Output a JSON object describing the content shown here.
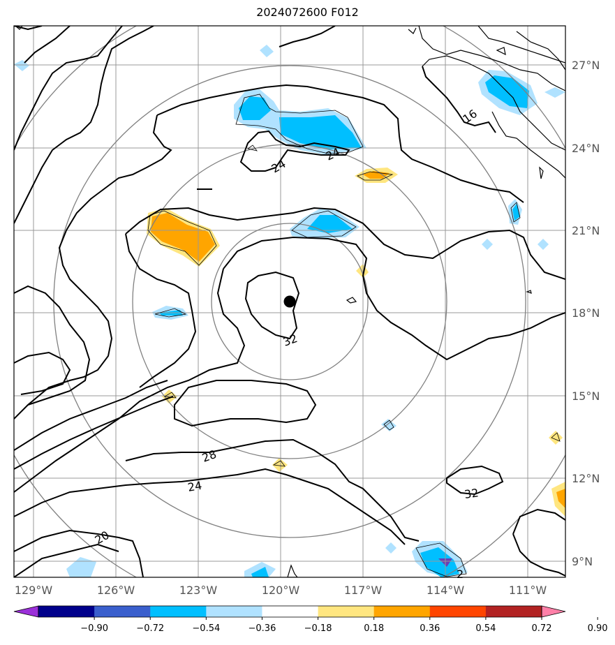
{
  "title": "2024072600 F012",
  "lon_labels": [
    "129°W",
    "126°W",
    "123°W",
    "120°W",
    "117°W",
    "114°W",
    "111°W"
  ],
  "lat_labels": [
    "27°N",
    "24°N",
    "21°N",
    "18°N",
    "15°N",
    "12°N",
    "9°N"
  ],
  "contour_labels": [
    "16",
    "24",
    "24",
    "32",
    "28",
    "24",
    "20",
    "32",
    "2"
  ],
  "colorbar": {
    "ticks": [
      "−0.90",
      "−0.72",
      "−0.54",
      "−0.36",
      "−0.18",
      "0.18",
      "0.36",
      "0.54",
      "0.72",
      "0.90"
    ],
    "colors": [
      "#9b30d9",
      "#00008b",
      "#3a5fcd",
      "#00bfff",
      "#b0e2ff",
      "#ffffff",
      "#ffe680",
      "#ffa500",
      "#ff4500",
      "#b22222",
      "#ff80a8"
    ]
  },
  "colors": {
    "light_blue": "#b0e2ff",
    "blue": "#00bfff",
    "light_orange": "#ffe680",
    "orange": "#ffa500",
    "purple": "#6a3fb5",
    "grid": "#999999",
    "range_ring": "#808080"
  },
  "center_marker": "storm-center-dot"
}
